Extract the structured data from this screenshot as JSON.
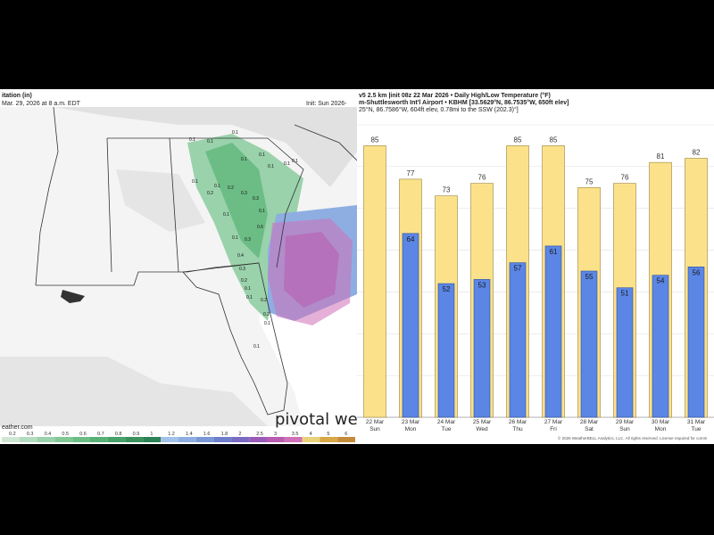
{
  "map": {
    "title": "itation (in)",
    "valid": "Mar. 29, 2026 at 8 a.m. EDT",
    "init": "Init: Sun 2026-",
    "site": "eather.com",
    "watermark": "pivotal we",
    "scale_labels": [
      "0.2",
      "0.3",
      "0.4",
      "0.5",
      "0.6",
      "0.7",
      "0.8",
      "0.9",
      "1",
      "1.2",
      "1.4",
      "1.6",
      "1.8",
      "2",
      "2.5",
      "3",
      "3.5",
      "4",
      "5",
      "6"
    ],
    "scale_colors": [
      "#cfe6d4",
      "#b5dcc0",
      "#9ad2ab",
      "#82c896",
      "#6cbd85",
      "#58b077",
      "#48a169",
      "#3a915d",
      "#2c8255",
      "#a3c2e8",
      "#8eaee2",
      "#7a97d6",
      "#6d7fcc",
      "#7a6bc2",
      "#9a5bb8",
      "#b85caf",
      "#d070b8",
      "#e9d27a",
      "#d8a748",
      "#c48b3b"
    ],
    "contour_labels": [
      "0.1",
      "0.1",
      "0.1",
      "0.1",
      "0.1",
      "0.1",
      "0.1",
      "0.1",
      "0.1",
      "0.1",
      "0.2",
      "0.2",
      "0.3",
      "0.3",
      "0.1",
      "0.6",
      "0.3",
      "0.4",
      "0.1",
      "0.3",
      "0.2",
      "0.1",
      "0.1",
      "0.2",
      "0.2",
      "0.1",
      "0.1",
      "0.1"
    ]
  },
  "chart": {
    "header_line1": "v5 2.5 km  |init 08z 22 Mar 2026 •  Daily High/Low Temperature (°F)",
    "header_line2": "m-Shuttlesworth Int'l Airport • KBHM [33.5629°N, 86.7535°W, 650ft elev]",
    "header_line3": "25°N, 86.7586°W, 604ft elev, 0.78mi to the SSW (202.3)°]",
    "footer": "© 2026 WeatherBELL Analytics, LLC. All rights reserved. License required for comm"
  },
  "colors": {
    "high": "#fbe28a",
    "high_stroke": "#9a8440",
    "low": "#5b86e6",
    "low_stroke": "#2d4f9e"
  },
  "chart_data": {
    "type": "bar",
    "categories": [
      "22 Mar Sun",
      "23 Mar Mon",
      "24 Mar Tue",
      "25 Mar Wed",
      "26 Mar Thu",
      "27 Mar Fri",
      "28 Mar Sat",
      "29 Mar Sun",
      "30 Mar Mon",
      "31 Mar Tue"
    ],
    "dates": [
      "22 Mar",
      "23 Mar",
      "24 Mar",
      "25 Mar",
      "26 Mar",
      "27 Mar",
      "28 Mar",
      "29 Mar",
      "30 Mar",
      "31 Mar"
    ],
    "days": [
      "Sun",
      "Mon",
      "Tue",
      "Wed",
      "Thu",
      "Fri",
      "Sat",
      "Sun",
      "Mon",
      "Tue"
    ],
    "series": [
      {
        "values": [
          85,
          77,
          73,
          76,
          85,
          85,
          75,
          76,
          81,
          82
        ]
      },
      {
        "values": [
          null,
          64,
          52,
          53,
          57,
          61,
          55,
          51,
          54,
          56
        ]
      }
    ],
    "ylim": [
      20,
      90
    ]
  }
}
